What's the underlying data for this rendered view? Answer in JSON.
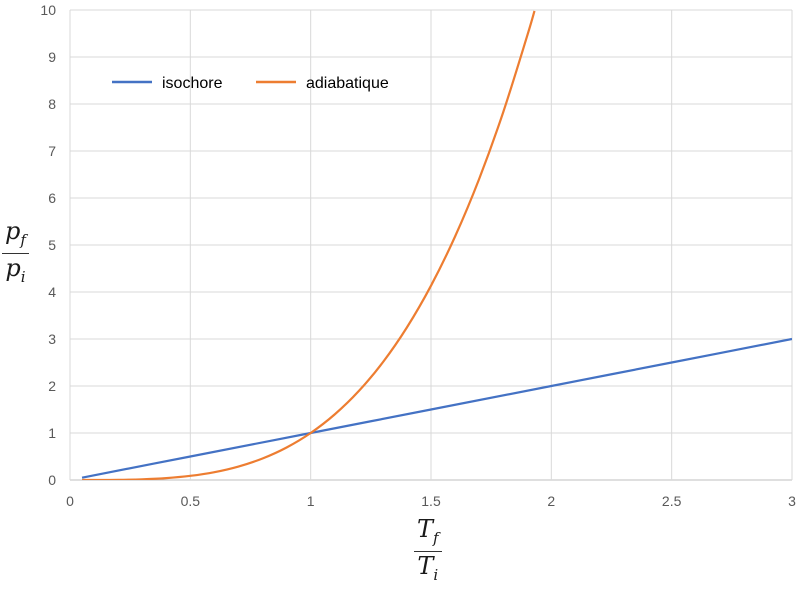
{
  "chart_data": {
    "type": "line",
    "title": "",
    "xlabel": {
      "numerator": "T",
      "numerator_sub": "f",
      "denominator": "T",
      "denominator_sub": "i"
    },
    "ylabel": {
      "numerator": "p",
      "numerator_sub": "f",
      "denominator": "p",
      "denominator_sub": "i"
    },
    "xlim": [
      0,
      3
    ],
    "ylim": [
      0,
      10
    ],
    "xticks": [
      "0",
      "0.5",
      "1",
      "1.5",
      "2",
      "2.5",
      "3"
    ],
    "yticks": [
      "0",
      "1",
      "2",
      "3",
      "4",
      "5",
      "6",
      "7",
      "8",
      "9",
      "10"
    ],
    "grid": true,
    "legend_position": "top-left",
    "series": [
      {
        "name": "isochore",
        "color": "#4472C4",
        "x": [
          0.05,
          0.5,
          1,
          1.5,
          2,
          2.5,
          3
        ],
        "y": [
          0.05,
          0.5,
          1,
          1.5,
          2,
          2.5,
          3
        ]
      },
      {
        "name": "adiabatique",
        "color": "#ED7D31",
        "x": [
          0.05,
          0.1,
          0.2,
          0.3,
          0.4,
          0.5,
          0.6,
          0.7,
          0.8,
          0.9,
          1.0,
          1.1,
          1.2,
          1.3,
          1.4,
          1.5,
          1.6,
          1.7,
          1.8,
          1.9,
          1.93
        ],
        "y": [
          0.0,
          0.0003,
          0.0036,
          0.0148,
          0.0405,
          0.0884,
          0.167,
          0.287,
          0.458,
          0.692,
          1.0,
          1.396,
          1.893,
          2.505,
          3.247,
          4.134,
          5.181,
          6.405,
          7.825,
          9.456,
          9.98
        ]
      }
    ]
  }
}
